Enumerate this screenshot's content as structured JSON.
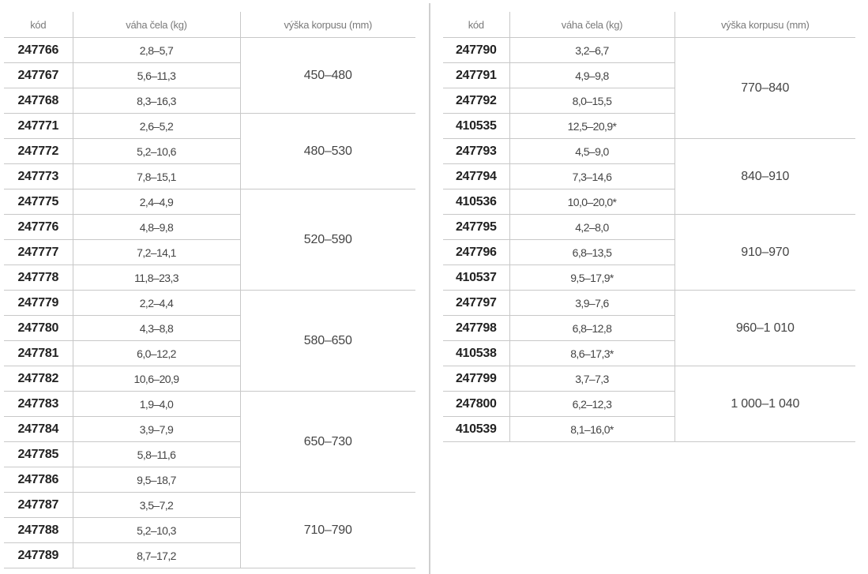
{
  "headers": {
    "code": "kód",
    "weight": "váha čela (kg)",
    "height": "výška korpusu (mm)"
  },
  "left": [
    {
      "height": "450–480",
      "rows": [
        [
          "247766",
          "2,8–5,7"
        ],
        [
          "247767",
          "5,6–11,3"
        ],
        [
          "247768",
          "8,3–16,3"
        ]
      ]
    },
    {
      "height": "480–530",
      "rows": [
        [
          "247771",
          "2,6–5,2"
        ],
        [
          "247772",
          "5,2–10,6"
        ],
        [
          "247773",
          "7,8–15,1"
        ]
      ]
    },
    {
      "height": "520–590",
      "rows": [
        [
          "247775",
          "2,4–4,9"
        ],
        [
          "247776",
          "4,8–9,8"
        ],
        [
          "247777",
          "7,2–14,1"
        ],
        [
          "247778",
          "11,8–23,3"
        ]
      ]
    },
    {
      "height": "580–650",
      "rows": [
        [
          "247779",
          "2,2–4,4"
        ],
        [
          "247780",
          "4,3–8,8"
        ],
        [
          "247781",
          "6,0–12,2"
        ],
        [
          "247782",
          "10,6–20,9"
        ]
      ]
    },
    {
      "height": "650–730",
      "rows": [
        [
          "247783",
          "1,9–4,0"
        ],
        [
          "247784",
          "3,9–7,9"
        ],
        [
          "247785",
          "5,8–11,6"
        ],
        [
          "247786",
          "9,5–18,7"
        ]
      ]
    },
    {
      "height": "710–790",
      "rows": [
        [
          "247787",
          "3,5–7,2"
        ],
        [
          "247788",
          "5,2–10,3"
        ],
        [
          "247789",
          "8,7–17,2"
        ]
      ]
    }
  ],
  "right": [
    {
      "height": "770–840",
      "rows": [
        [
          "247790",
          "3,2–6,7"
        ],
        [
          "247791",
          "4,9–9,8"
        ],
        [
          "247792",
          "8,0–15,5"
        ],
        [
          "410535",
          "12,5–20,9*"
        ]
      ]
    },
    {
      "height": "840–910",
      "rows": [
        [
          "247793",
          "4,5–9,0"
        ],
        [
          "247794",
          "7,3–14,6"
        ],
        [
          "410536",
          "10,0–20,0*"
        ]
      ]
    },
    {
      "height": "910–970",
      "rows": [
        [
          "247795",
          "4,2–8,0"
        ],
        [
          "247796",
          "6,8–13,5"
        ],
        [
          "410537",
          "9,5–17,9*"
        ]
      ]
    },
    {
      "height": "960–1 010",
      "rows": [
        [
          "247797",
          "3,9–7,6"
        ],
        [
          "247798",
          "6,8–12,8"
        ],
        [
          "410538",
          "8,6–17,3*"
        ]
      ]
    },
    {
      "height": "1 000–1 040",
      "rows": [
        [
          "247799",
          "3,7–7,3"
        ],
        [
          "247800",
          "6,2–12,3"
        ],
        [
          "410539",
          "8,1–16,0*"
        ]
      ]
    }
  ]
}
